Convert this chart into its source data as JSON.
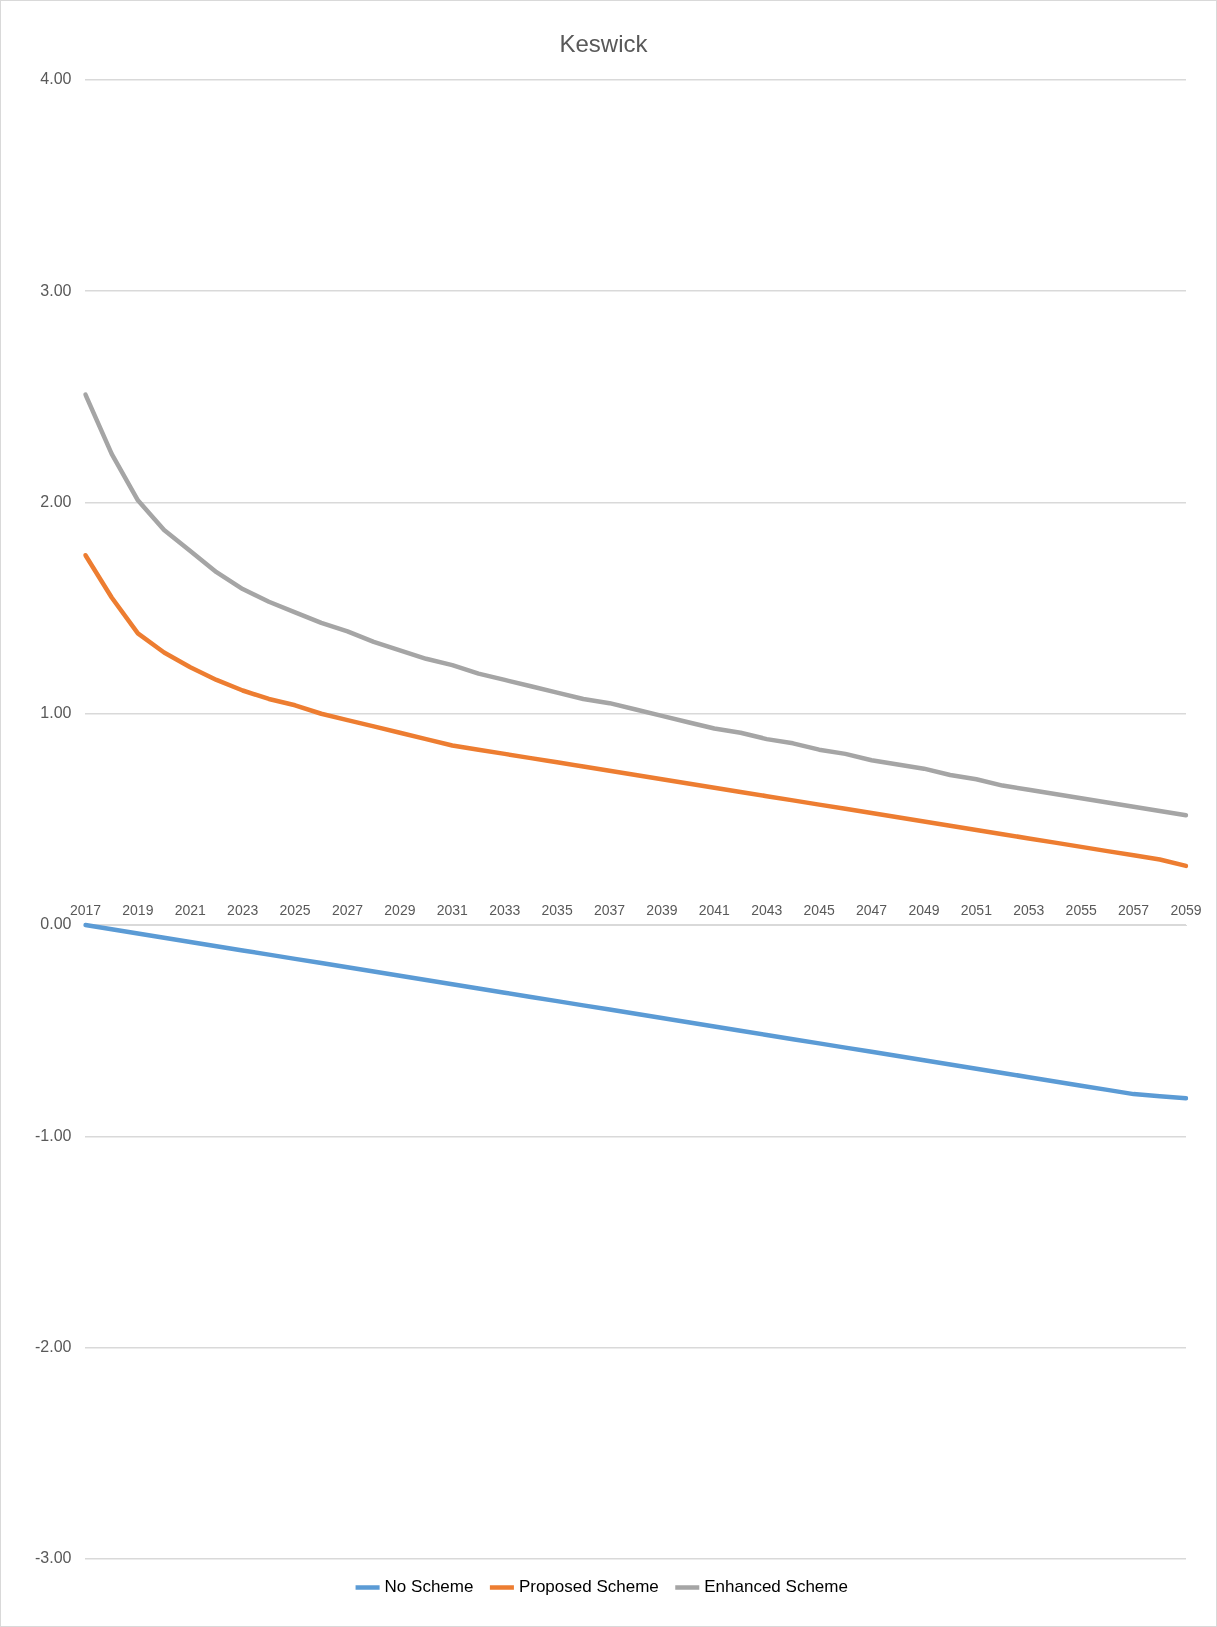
{
  "chart_data": {
    "type": "line",
    "title": "Keswick",
    "categories": [
      "2017",
      null,
      "2019",
      null,
      "2021",
      null,
      "2023",
      null,
      "2025",
      null,
      "2027",
      null,
      "2029",
      null,
      "2031",
      null,
      "2033",
      null,
      "2035",
      null,
      "2037",
      null,
      "2039",
      null,
      "2041",
      null,
      "2043",
      null,
      "2045",
      null,
      "2047",
      null,
      "2049",
      null,
      "2051",
      null,
      "2053",
      null,
      "2055",
      null,
      "2057",
      null,
      "2059"
    ],
    "series": [
      {
        "name": "No Scheme",
        "color": "#5b9bd5",
        "values": [
          0,
          -0.02,
          -0.04,
          -0.06,
          -0.08,
          -0.1,
          -0.12,
          -0.14,
          -0.16,
          -0.18,
          -0.2,
          -0.22,
          -0.24,
          -0.26,
          -0.28,
          -0.3,
          -0.32,
          -0.34,
          -0.36,
          -0.38,
          -0.4,
          -0.42,
          -0.44,
          -0.46,
          -0.48,
          -0.5,
          -0.52,
          -0.54,
          -0.56,
          -0.58,
          -0.6,
          -0.62,
          -0.64,
          -0.66,
          -0.68,
          -0.7,
          -0.72,
          -0.74,
          -0.76,
          -0.78,
          -0.8,
          -0.81,
          -0.82
        ]
      },
      {
        "name": "Proposed Scheme",
        "color": "#ed7d31",
        "values": [
          1.75,
          1.55,
          1.38,
          1.29,
          1.22,
          1.16,
          1.11,
          1.07,
          1.04,
          1.0,
          0.97,
          0.94,
          0.91,
          0.88,
          0.85,
          0.83,
          0.81,
          0.79,
          0.77,
          0.75,
          0.73,
          0.71,
          0.69,
          0.67,
          0.65,
          0.63,
          0.61,
          0.59,
          0.57,
          0.55,
          0.53,
          0.51,
          0.49,
          0.47,
          0.45,
          0.43,
          0.41,
          0.39,
          0.37,
          0.35,
          0.33,
          0.31,
          0.28
        ]
      },
      {
        "name": "Enhanced Scheme",
        "color": "#a5a5a5",
        "values": [
          2.51,
          2.23,
          2.01,
          1.87,
          1.77,
          1.67,
          1.59,
          1.53,
          1.48,
          1.43,
          1.39,
          1.34,
          1.3,
          1.26,
          1.23,
          1.19,
          1.16,
          1.13,
          1.1,
          1.07,
          1.05,
          1.02,
          0.99,
          0.96,
          0.93,
          0.91,
          0.88,
          0.86,
          0.83,
          0.81,
          0.78,
          0.76,
          0.74,
          0.71,
          0.69,
          0.66,
          0.64,
          0.62,
          0.6,
          0.58,
          0.56,
          0.54,
          0.52
        ]
      }
    ],
    "ylim": [
      -3,
      4
    ],
    "yticks": [
      {
        "value": -3,
        "label": "-3.00"
      },
      {
        "value": -2,
        "label": "-2.00"
      },
      {
        "value": -1,
        "label": "-1.00"
      },
      {
        "value": 0,
        "label": "0.00"
      },
      {
        "value": 1,
        "label": "1.00"
      },
      {
        "value": 2,
        "label": "2.00"
      },
      {
        "value": 3,
        "label": "3.00"
      },
      {
        "value": 4,
        "label": "4.00"
      }
    ],
    "grid": "y",
    "legend": "bottom",
    "marker": "none",
    "line_style": "solid"
  }
}
